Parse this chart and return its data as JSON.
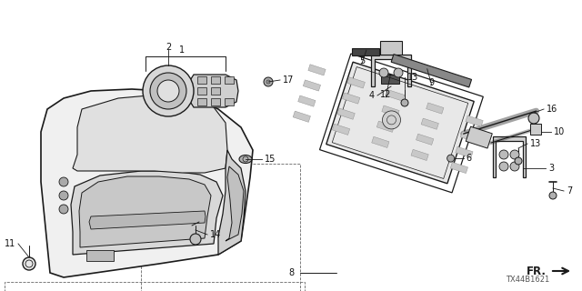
{
  "background_color": "#ffffff",
  "diagram_id": "TX44B1621",
  "line_color": "#1a1a1a",
  "text_color": "#111111",
  "dashed_color": "#666666",
  "font_size": 7.0,
  "small_font_size": 6.0,
  "fig_width": 6.4,
  "fig_height": 3.2,
  "dpi": 100
}
